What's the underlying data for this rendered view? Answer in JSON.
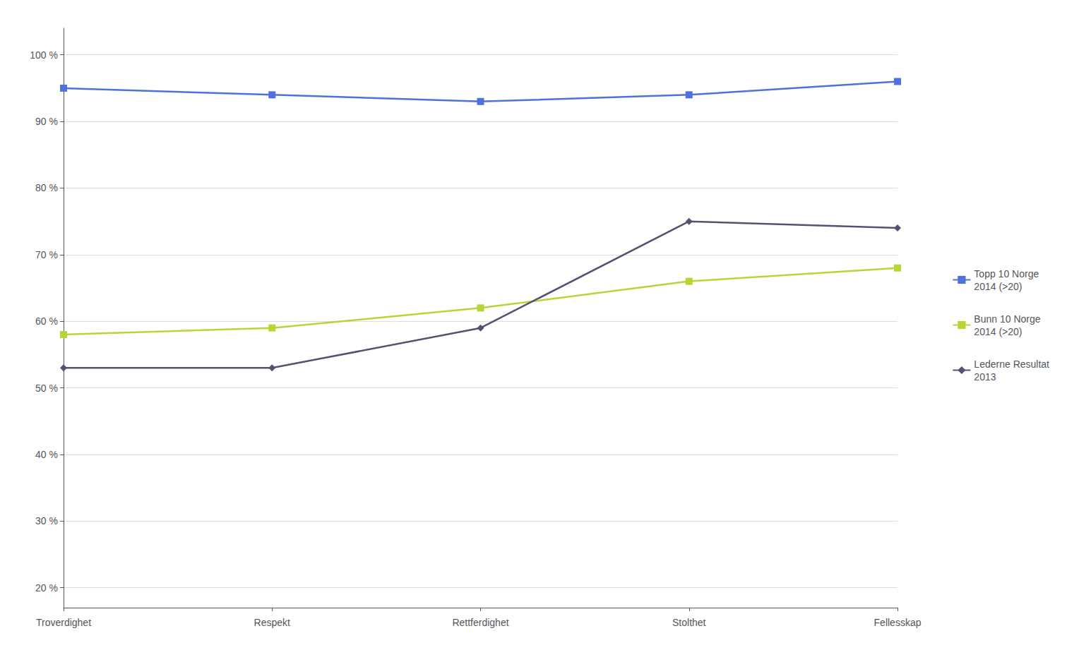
{
  "chart_data": {
    "type": "line",
    "categories": [
      "Troverdighet",
      "Respekt",
      "Rettferdighet",
      "Stolthet",
      "Fellesskap"
    ],
    "series": [
      {
        "name": "Topp 10 Norge\n2014 (>20)",
        "values": [
          95,
          94,
          93,
          94,
          96
        ],
        "marker": "square"
      },
      {
        "name": "Bunn 10 Norge\n2014 (>20)",
        "values": [
          58,
          59,
          62,
          66,
          68
        ],
        "marker": "square"
      },
      {
        "name": "Lederne Resultat\n2013",
        "values": [
          53,
          53,
          59,
          75,
          74
        ],
        "marker": "diamond"
      }
    ],
    "ylim": [
      17,
      104
    ],
    "yticks": [
      {
        "value": 20,
        "label": "20 %"
      },
      {
        "value": 30,
        "label": "30 %"
      },
      {
        "value": 40,
        "label": "40 %"
      },
      {
        "value": 50,
        "label": "50 %"
      },
      {
        "value": 60,
        "label": "60 %"
      },
      {
        "value": 70,
        "label": "70 %"
      },
      {
        "value": 80,
        "label": "80 %"
      },
      {
        "value": 90,
        "label": "90 %"
      },
      {
        "value": 100,
        "label": "100 %"
      }
    ],
    "grid": true,
    "legend": "right"
  }
}
